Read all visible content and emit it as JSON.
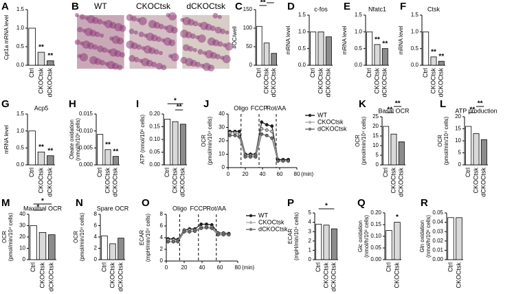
{
  "chart_data": [
    {
      "type": "bar",
      "label": "A",
      "ylabel": [
        "Cpt1a mRNA level"
      ],
      "categories": [
        "Ctrl",
        "CKOCtsk",
        "dCKOCtsk"
      ],
      "values": [
        1.0,
        0.35,
        0.12
      ],
      "colors": [
        "#ffffff",
        "#d9d9d9",
        "#8c8c8c"
      ],
      "ylim": [
        0,
        1.5
      ],
      "yticks": [
        {
          "value": 0,
          "label": "0.0"
        },
        0.5,
        {
          "value": 1,
          "label": "1.0"
        },
        1.5
      ],
      "annotations": [
        {
          "text": "**",
          "category": "CKOCtsk"
        },
        {
          "text": "**",
          "category": "dCKOCtsk"
        }
      ]
    },
    {
      "type": "image",
      "label": "B",
      "labels": [
        "WT",
        "CKOCtsk",
        "dCKOCtsk"
      ]
    },
    {
      "type": "bar",
      "label": "C",
      "ylabel": [
        "#OC/well"
      ],
      "categories": [
        "Ctrl",
        "CKOCtsk",
        "dCKOCtsk"
      ],
      "values": [
        105,
        60,
        32
      ],
      "colors": [
        "#ffffff",
        "#d9d9d9",
        "#8c8c8c"
      ],
      "ylim": [
        0,
        150
      ],
      "yticks": [
        0,
        50,
        100,
        150
      ],
      "brackets": [
        {
          "text": "**",
          "from": "Ctrl",
          "to": "CKOCtsk"
        },
        {
          "text": "**",
          "from": "CKOCtsk",
          "to": "dCKOCtsk"
        }
      ]
    },
    {
      "type": "bar",
      "label": "D",
      "title": "c-fos",
      "ylabel": [
        "mRNA level"
      ],
      "categories": [
        "Ctrl",
        "CKOCtsk",
        "dCKOCtsk"
      ],
      "values": [
        1.0,
        1.0,
        0.85
      ],
      "colors": [
        "#ffffff",
        "#d9d9d9",
        "#8c8c8c"
      ],
      "ylim": [
        0,
        1.5
      ],
      "yticks": [
        {
          "value": 0,
          "label": "0.0"
        },
        0.5,
        {
          "value": 1,
          "label": "1.0"
        },
        1.5
      ]
    },
    {
      "type": "bar",
      "label": "E",
      "title": "Nfatc1",
      "ylabel": [
        "mRNA level"
      ],
      "categories": [
        "Ctrl",
        "CKOCtsk",
        "dCKOCtsk"
      ],
      "values": [
        1.0,
        0.62,
        0.5
      ],
      "colors": [
        "#ffffff",
        "#d9d9d9",
        "#8c8c8c"
      ],
      "ylim": [
        0,
        1.5
      ],
      "yticks": [
        {
          "value": 0,
          "label": "0.0"
        },
        0.5,
        {
          "value": 1,
          "label": "1.0"
        },
        1.5
      ],
      "annotations": [
        {
          "text": "**",
          "category": "CKOCtsk"
        },
        {
          "text": "**",
          "category": "dCKOCtsk"
        }
      ]
    },
    {
      "type": "bar",
      "label": "F",
      "title": "Ctsk",
      "ylabel": [
        "mRNA level"
      ],
      "categories": [
        "Ctrl",
        "CKOCtsk",
        "dCKOCtsk"
      ],
      "values": [
        1.0,
        0.25,
        0.12
      ],
      "colors": [
        "#ffffff",
        "#d9d9d9",
        "#8c8c8c"
      ],
      "ylim": [
        0,
        1.5
      ],
      "yticks": [
        {
          "value": 0,
          "label": "0.0"
        },
        0.5,
        {
          "value": 1,
          "label": "1.0"
        },
        1.5
      ],
      "annotations": [
        {
          "text": "**",
          "category": "CKOCtsk"
        },
        {
          "text": "**",
          "category": "dCKOCtsk"
        }
      ]
    },
    {
      "type": "bar",
      "label": "G",
      "title": "Acp5",
      "ylabel": [
        "mRNA level"
      ],
      "categories": [
        "Ctrl",
        "CKOCtsk",
        "dCKOCtsk"
      ],
      "values": [
        1.0,
        0.38,
        0.27
      ],
      "colors": [
        "#ffffff",
        "#d9d9d9",
        "#8c8c8c"
      ],
      "ylim": [
        0,
        1.5
      ],
      "yticks": [
        {
          "value": 0,
          "label": "0.0"
        },
        0.5,
        {
          "value": 1,
          "label": "1.0"
        },
        1.5
      ],
      "annotations": [
        {
          "text": "**",
          "category": "CKOCtsk"
        },
        {
          "text": "**",
          "category": "dCKOCtsk"
        }
      ]
    },
    {
      "type": "bar",
      "label": "H",
      "ylabel": [
        "Oleate oxidation",
        "(nmol/h/10⁶ cells)"
      ],
      "categories": [
        "Ctrl",
        "CKOCtsk",
        "dCKOCtsk"
      ],
      "values": [
        0.009,
        0.0045,
        0.0025
      ],
      "colors": [
        "#ffffff",
        "#d9d9d9",
        "#8c8c8c"
      ],
      "ylim": [
        0,
        0.015
      ],
      "yticks": [
        {
          "value": 0,
          "label": "0.000"
        },
        0.005,
        {
          "value": 0.01,
          "label": "0.010"
        },
        0.015
      ],
      "annotations": [
        {
          "text": "**",
          "category": "CKOCtsk"
        },
        {
          "text": "**",
          "category": "dCKOCtsk"
        }
      ]
    },
    {
      "type": "bar",
      "label": "I",
      "ylabel": [
        "ATP (nmol/10⁶ cells)"
      ],
      "categories": [
        "Ctrl",
        "CKOCtsk",
        "dCKOCtsk"
      ],
      "values": [
        0.18,
        0.17,
        0.16
      ],
      "colors": [
        "#ffffff",
        "#d9d9d9",
        "#8c8c8c"
      ],
      "ylim": [
        0,
        0.2
      ],
      "yticks": [
        {
          "value": 0,
          "label": "0.00"
        },
        0.05,
        {
          "value": 0.1,
          "label": "0.10"
        },
        0.15,
        {
          "value": 0.2,
          "label": "0.20"
        }
      ],
      "brackets": [
        {
          "text": "**",
          "from": "CKOCtsk",
          "to": "dCKOCtsk"
        },
        {
          "text": "*",
          "from": "Ctrl",
          "to": "dCKOCtsk"
        }
      ]
    },
    {
      "type": "line",
      "label": "J",
      "ylabel": [
        "OCR",
        "(pmol/min/10⁴ cells)"
      ],
      "xlabel": "(min)",
      "x": [
        2,
        8,
        13,
        20,
        26,
        32,
        39,
        45,
        51,
        58,
        64,
        70
      ],
      "xlim": [
        0,
        80
      ],
      "xticks": [
        0,
        20,
        40,
        60,
        80
      ],
      "ylim": [
        0,
        40
      ],
      "yticks": [
        0,
        10,
        20,
        30,
        40
      ],
      "events": [
        {
          "x": 15,
          "label": "Oligo"
        },
        {
          "x": 36,
          "label": "FCCP"
        },
        {
          "x": 56,
          "label": "Rot/AA"
        }
      ],
      "series": [
        {
          "name": "WT",
          "color": "#222222",
          "values": [
            27,
            27,
            27,
            10,
            10,
            10,
            34,
            32,
            31,
            6,
            6,
            6
          ]
        },
        {
          "name": "CKOCtsk",
          "color": "#b3b3b3",
          "values": [
            26,
            26,
            25,
            9,
            9,
            9,
            29,
            28,
            27,
            5,
            5,
            5
          ]
        },
        {
          "name": "dCKOCtsk",
          "color": "#6e6e6e",
          "values": [
            24,
            24,
            23,
            8,
            8,
            8,
            25,
            24,
            22,
            5,
            5,
            5
          ]
        }
      ]
    },
    {
      "type": "bar",
      "label": "K",
      "title": "Basal OCR",
      "ylabel": [
        "OCR",
        "(pmol/min/10⁴ cells)"
      ],
      "categories": [
        "Ctrl",
        "CKOCtsk",
        "dCKOCtsk"
      ],
      "values": [
        20,
        16,
        12
      ],
      "colors": [
        "#ffffff",
        "#d9d9d9",
        "#8c8c8c"
      ],
      "ylim": [
        0,
        25
      ],
      "yticks": [
        0,
        5,
        10,
        15,
        20,
        25
      ],
      "brackets": [
        {
          "text": "**",
          "from": "Ctrl",
          "to": "CKOCtsk"
        },
        {
          "text": "**",
          "from": "CKOCtsk",
          "to": "dCKOCtsk"
        }
      ]
    },
    {
      "type": "bar",
      "label": "L",
      "title": "ATP production",
      "ylabel": [
        "OCR",
        "(pmol/min/10⁴ cells)"
      ],
      "categories": [
        "Ctrl",
        "CKOCtsk",
        "dCKOCtsk"
      ],
      "values": [
        16,
        13,
        10.5
      ],
      "colors": [
        "#ffffff",
        "#d9d9d9",
        "#8c8c8c"
      ],
      "ylim": [
        0,
        20
      ],
      "yticks": [
        0,
        5,
        10,
        15,
        20
      ],
      "brackets": [
        {
          "text": "**",
          "from": "Ctrl",
          "to": "CKOCtsk"
        },
        {
          "text": "**",
          "from": "CKOCtsk",
          "to": "dCKOCtsk"
        }
      ]
    },
    {
      "type": "bar",
      "label": "M",
      "title": "Maximal OCR",
      "ylabel": [
        "OCR",
        "(pmol/min/10⁴ cells)"
      ],
      "categories": [
        "Ctrl",
        "CKOCtsk",
        "dCKOCtsk"
      ],
      "values": [
        30,
        24,
        22
      ],
      "colors": [
        "#ffffff",
        "#d9d9d9",
        "#8c8c8c"
      ],
      "ylim": [
        0,
        40
      ],
      "yticks": [
        0,
        10,
        20,
        30,
        40
      ],
      "brackets": [
        {
          "text": "*",
          "from": "Ctrl",
          "to": "CKOCtsk"
        },
        {
          "text": "*",
          "from": "Ctrl",
          "to": "dCKOCtsk"
        }
      ]
    },
    {
      "type": "bar",
      "label": "N",
      "title": "Spare OCR",
      "ylabel": [
        "OCR",
        "(pmol/min/10⁴ cells)"
      ],
      "categories": [
        "Ctrl",
        "CKOCtsk",
        "dCKOCtsk"
      ],
      "values": [
        4.2,
        2.8,
        3.8
      ],
      "colors": [
        "#ffffff",
        "#d9d9d9",
        "#8c8c8c"
      ],
      "ylim": [
        0,
        8
      ],
      "yticks": [
        0,
        2,
        4,
        6,
        8
      ]
    },
    {
      "type": "line",
      "label": "O",
      "ylabel": [
        "ECAR",
        "(mpH/min/10⁴ cells)"
      ],
      "xlabel": "(min)",
      "x": [
        2,
        8,
        13,
        20,
        26,
        32,
        39,
        45,
        51,
        58,
        64,
        70
      ],
      "xlim": [
        0,
        80
      ],
      "xticks": [
        0,
        20,
        40,
        60,
        80
      ],
      "ylim": [
        0,
        8
      ],
      "yticks": [
        0,
        2,
        4,
        6,
        8
      ],
      "events": [
        {
          "x": 15,
          "label": "Oligo"
        },
        {
          "x": 36,
          "label": "FCCP"
        },
        {
          "x": 56,
          "label": "Rot/AA"
        }
      ],
      "series": [
        {
          "name": "WT",
          "color": "#222222",
          "values": [
            3.8,
            3.8,
            3.7,
            5.3,
            5.5,
            5.5,
            6.3,
            6.3,
            6.2,
            4.8,
            4.8,
            4.7
          ]
        },
        {
          "name": "CKOCtsk",
          "color": "#b3b3b3",
          "values": [
            3.6,
            3.6,
            3.5,
            5.2,
            5.3,
            5.3,
            5.8,
            5.9,
            5.8,
            4.7,
            4.7,
            4.6
          ]
        },
        {
          "name": "dCKOCtsk",
          "color": "#6e6e6e",
          "values": [
            3.3,
            3.3,
            3.3,
            5.0,
            5.0,
            5.1,
            5.6,
            5.7,
            5.6,
            4.5,
            4.5,
            4.5
          ]
        }
      ]
    },
    {
      "type": "bar",
      "label": "P",
      "ylabel": [
        "ECAR",
        "(mpH/min/10⁴ cells)"
      ],
      "categories": [
        "Ctrl",
        "CKOCtsk",
        "dCKOCtsk"
      ],
      "values": [
        3.8,
        3.7,
        3.3
      ],
      "colors": [
        "#ffffff",
        "#d9d9d9",
        "#8c8c8c"
      ],
      "ylim": [
        0,
        5
      ],
      "yticks": [
        0,
        1,
        2,
        3,
        4,
        5
      ],
      "brackets": [
        {
          "text": "*",
          "from": "Ctrl",
          "to": "dCKOCtsk"
        }
      ]
    },
    {
      "type": "bar",
      "label": "Q",
      "ylabel": [
        "Glc oxidation",
        "(nmol/h/10⁶ cells)"
      ],
      "categories": [
        "Ctrl",
        "CKOCtsk"
      ],
      "values": [
        0.125,
        0.16
      ],
      "colors": [
        "#ffffff",
        "#d9d9d9"
      ],
      "ylim": [
        0,
        0.2
      ],
      "yticks": [
        {
          "value": 0,
          "label": "0.00"
        },
        0.05,
        {
          "value": 0.1,
          "label": "0.10"
        },
        0.15,
        {
          "value": 0.2,
          "label": "0.20"
        }
      ],
      "annotations": [
        {
          "text": "*",
          "category": "CKOCtsk"
        }
      ]
    },
    {
      "type": "bar",
      "label": "R",
      "ylabel": [
        "Gln oxidation",
        "(nmol/h/10⁶ cells)"
      ],
      "categories": [
        "Ctrl",
        "CKOCtsk"
      ],
      "values": [
        0.045,
        0.045
      ],
      "colors": [
        "#ffffff",
        "#d9d9d9"
      ],
      "ylim": [
        0,
        0.05
      ],
      "yticks": [
        {
          "value": 0,
          "label": "0.00"
        },
        0.01,
        0.02,
        0.03,
        0.04,
        0.05
      ]
    }
  ]
}
